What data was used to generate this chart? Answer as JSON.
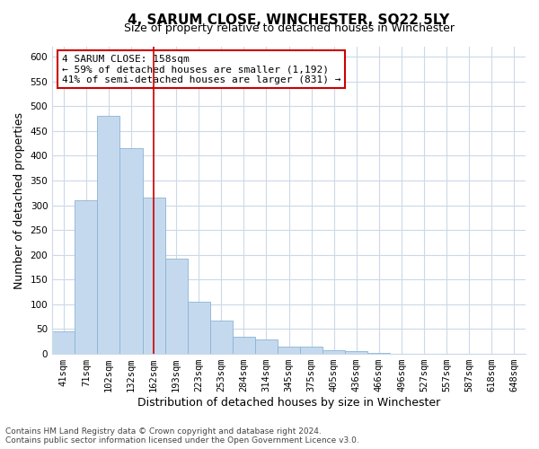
{
  "title": "4, SARUM CLOSE, WINCHESTER, SO22 5LY",
  "subtitle": "Size of property relative to detached houses in Winchester",
  "xlabel": "Distribution of detached houses by size in Winchester",
  "ylabel": "Number of detached properties",
  "bar_labels": [
    "41sqm",
    "71sqm",
    "102sqm",
    "132sqm",
    "162sqm",
    "193sqm",
    "223sqm",
    "253sqm",
    "284sqm",
    "314sqm",
    "345sqm",
    "375sqm",
    "405sqm",
    "436sqm",
    "466sqm",
    "496sqm",
    "527sqm",
    "557sqm",
    "587sqm",
    "618sqm",
    "648sqm"
  ],
  "bar_values": [
    46,
    310,
    480,
    415,
    315,
    192,
    105,
    68,
    35,
    30,
    14,
    14,
    8,
    5,
    2,
    1,
    0,
    0,
    0,
    0,
    1
  ],
  "bar_color": "#c5d9ee",
  "bar_edge_color": "#8ab4d4",
  "vline_x_index": 4,
  "vline_color": "#cc0000",
  "ann_line1": "4 SARUM CLOSE: 158sqm",
  "ann_line2": "← 59% of detached houses are smaller (1,192)",
  "ann_line3": "41% of semi-detached houses are larger (831) →",
  "annotation_box_color": "#ffffff",
  "annotation_box_edge": "#cc0000",
  "ylim": [
    0,
    620
  ],
  "yticks": [
    0,
    50,
    100,
    150,
    200,
    250,
    300,
    350,
    400,
    450,
    500,
    550,
    600
  ],
  "footer_line1": "Contains HM Land Registry data © Crown copyright and database right 2024.",
  "footer_line2": "Contains public sector information licensed under the Open Government Licence v3.0.",
  "bg_color": "#ffffff",
  "grid_color": "#ccd9e8",
  "title_fontsize": 11,
  "subtitle_fontsize": 9,
  "axis_label_fontsize": 9,
  "tick_fontsize": 7.5,
  "ann_fontsize": 8,
  "footer_fontsize": 6.5
}
